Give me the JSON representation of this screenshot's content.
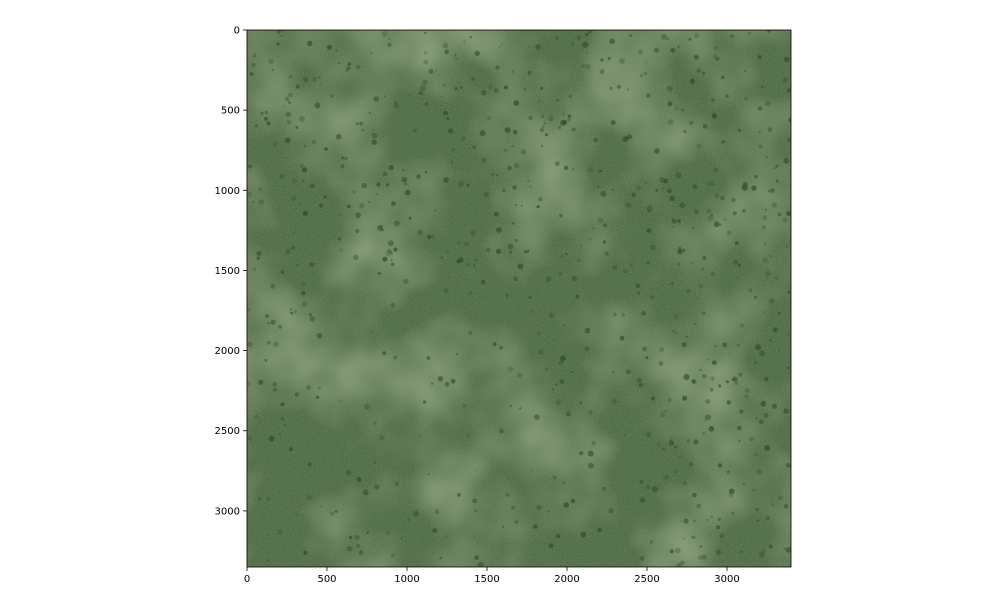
{
  "image": {
    "description_icon": "aerial-vegetation-image",
    "palette": {
      "base": "#4f6b42",
      "dark": "#3b5634",
      "light": "#66804f",
      "tree": "#2f4a2c"
    },
    "extent": {
      "x": [
        0,
        3400
      ],
      "y": [
        0,
        3350
      ]
    }
  },
  "axes": {
    "x_ticks": [
      {
        "value": 0,
        "label": "0"
      },
      {
        "value": 500,
        "label": "500"
      },
      {
        "value": 1000,
        "label": "1000"
      },
      {
        "value": 1500,
        "label": "1500"
      },
      {
        "value": 2000,
        "label": "2000"
      },
      {
        "value": 2500,
        "label": "2500"
      },
      {
        "value": 3000,
        "label": "3000"
      }
    ],
    "y_ticks": [
      {
        "value": 0,
        "label": "0"
      },
      {
        "value": 500,
        "label": "500"
      },
      {
        "value": 1000,
        "label": "1000"
      },
      {
        "value": 1500,
        "label": "1500"
      },
      {
        "value": 2000,
        "label": "2000"
      },
      {
        "value": 2500,
        "label": "2500"
      },
      {
        "value": 3000,
        "label": "3000"
      }
    ]
  }
}
